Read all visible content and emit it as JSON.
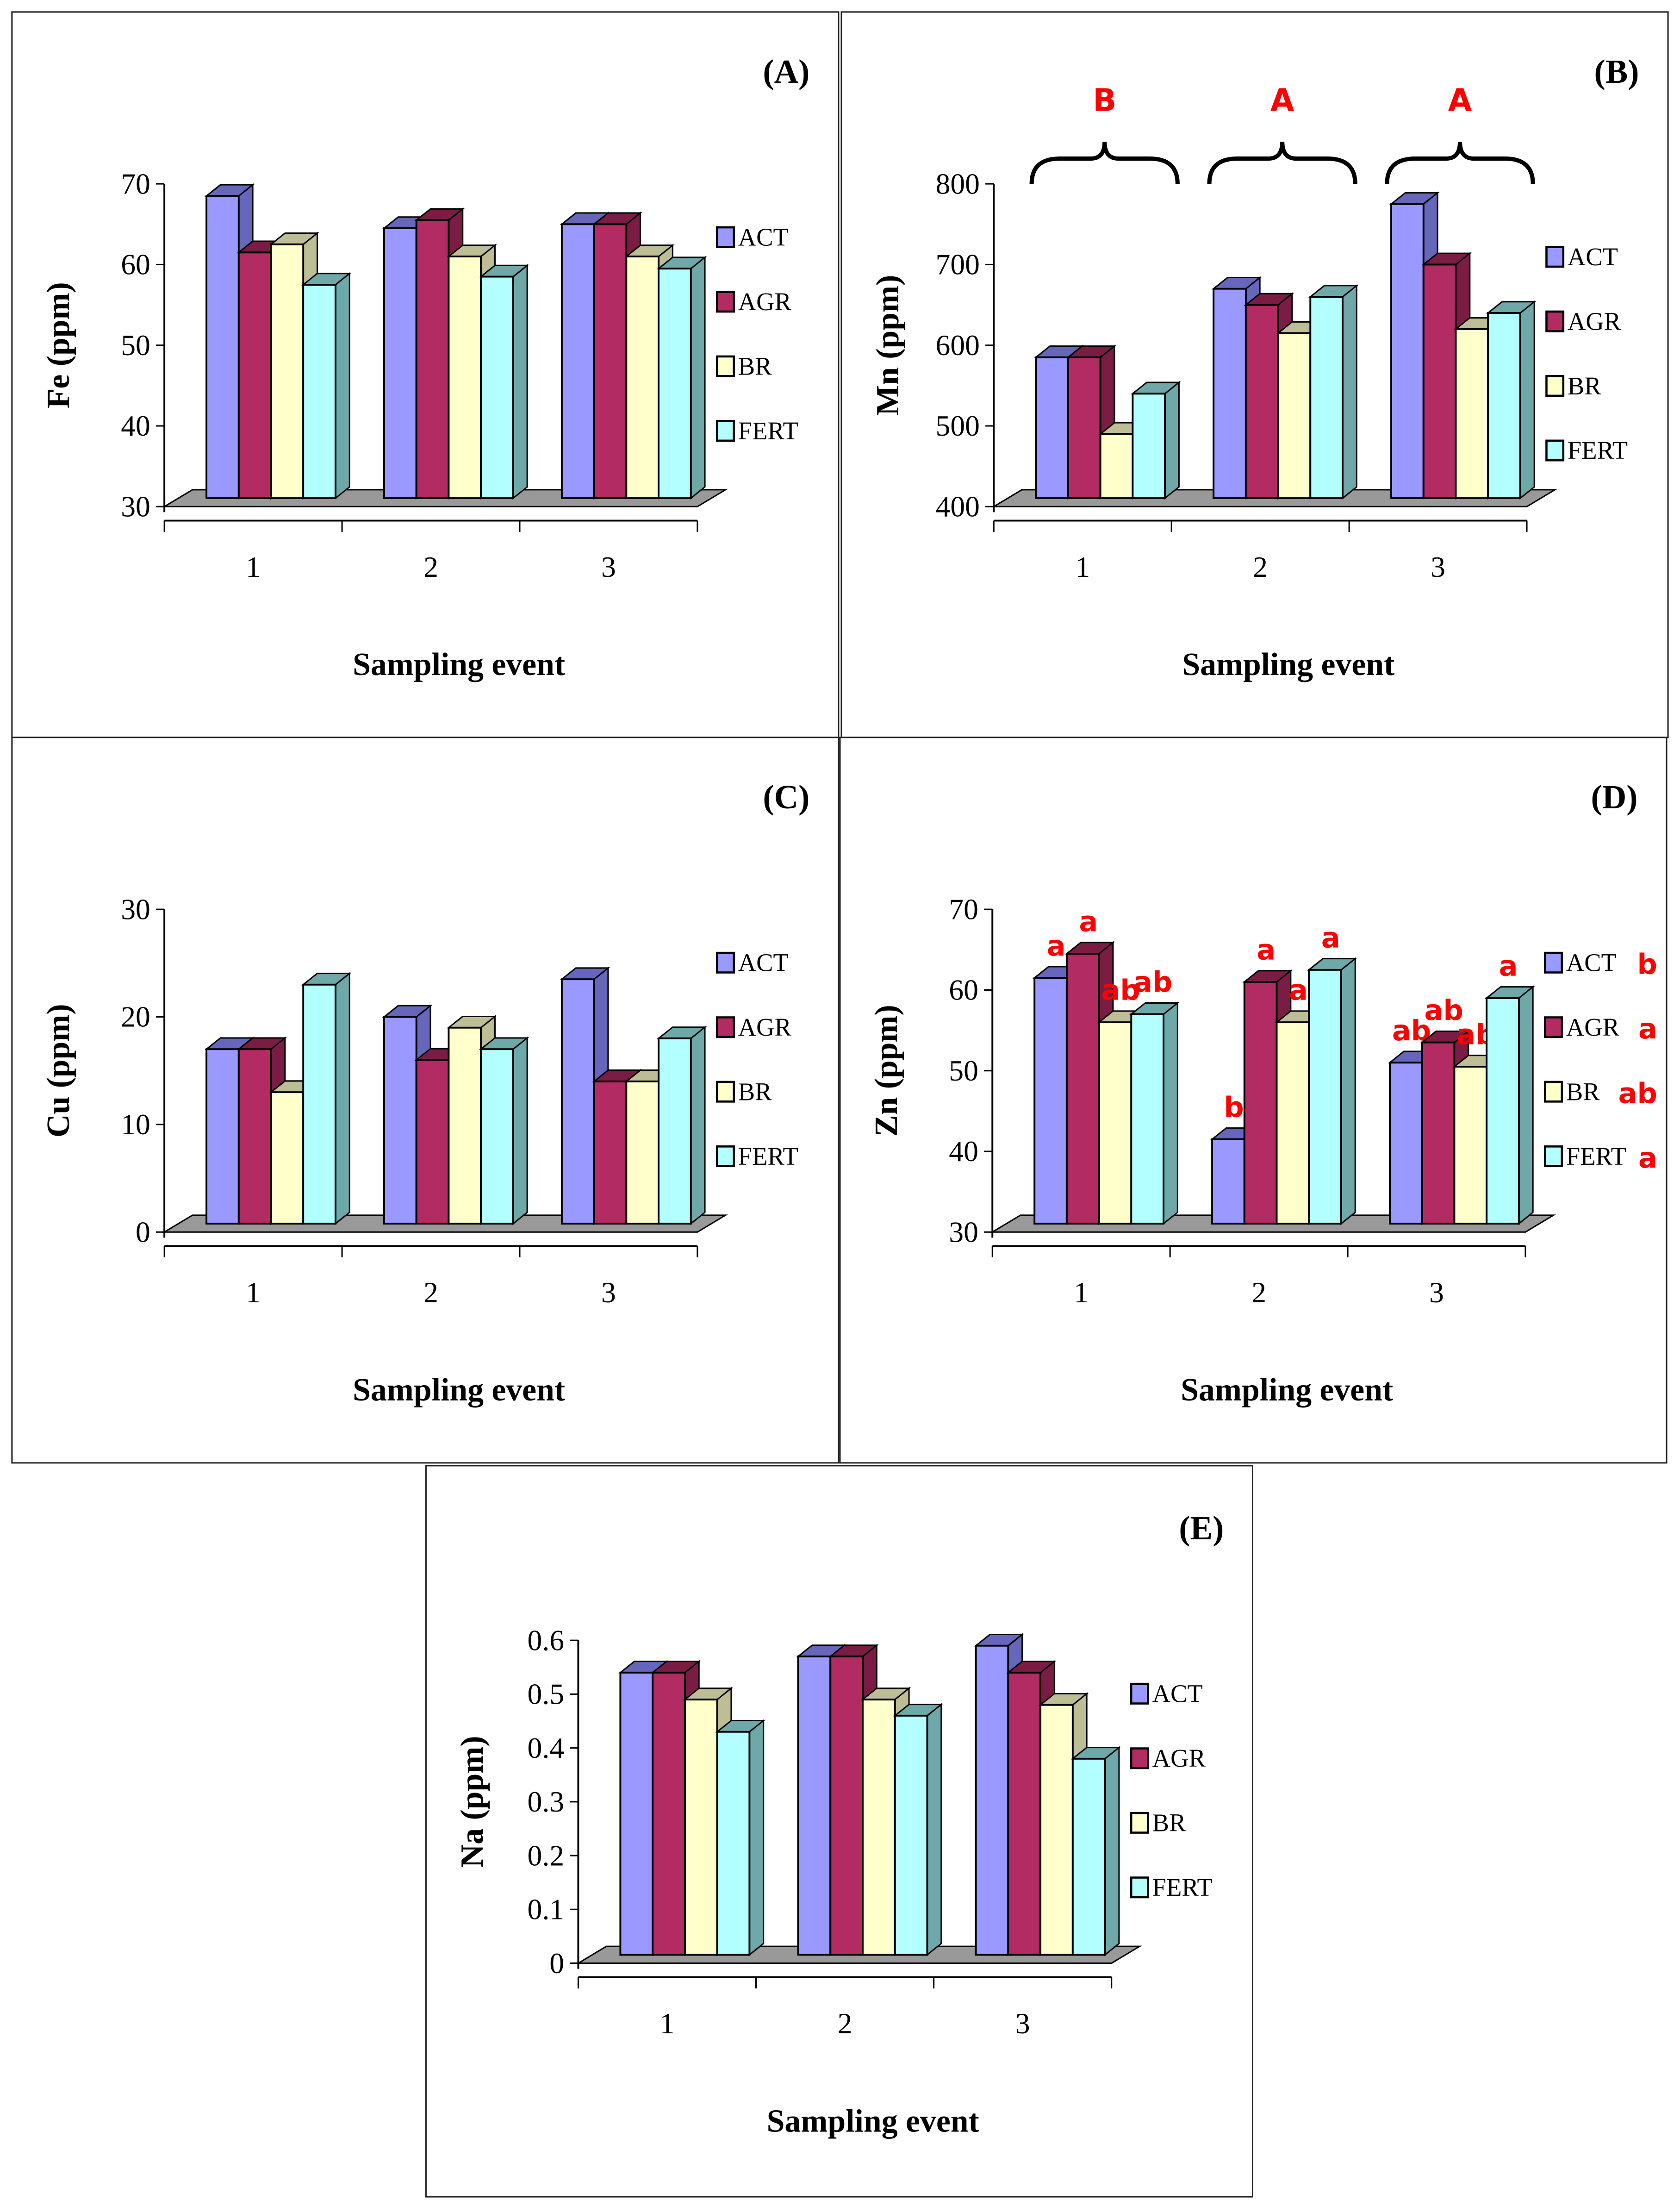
{
  "chart_data": [
    {
      "panel": "(A)",
      "type": "bar",
      "ylabel": "Fe (ppm)",
      "xlabel": "Sampling event",
      "categories": [
        "1",
        "2",
        "3"
      ],
      "ylim": [
        30,
        70
      ],
      "yticks": [
        "30",
        "40",
        "50",
        "60",
        "70"
      ],
      "series": [
        {
          "name": "ACT",
          "values": [
            68.5,
            64.5,
            65
          ]
        },
        {
          "name": "AGR",
          "values": [
            61.5,
            65.5,
            65
          ]
        },
        {
          "name": "BR",
          "values": [
            62.5,
            61,
            61
          ]
        },
        {
          "name": "FERT",
          "values": [
            57.5,
            58.5,
            59.5
          ]
        }
      ]
    },
    {
      "panel": "(B)",
      "type": "bar",
      "ylabel": "Mn (ppm)",
      "xlabel": "Sampling event",
      "categories": [
        "1",
        "2",
        "3"
      ],
      "ylim": [
        400,
        800
      ],
      "yticks": [
        "400",
        "500",
        "600",
        "700",
        "800"
      ],
      "group_letters": [
        "B",
        "A",
        "A"
      ],
      "series": [
        {
          "name": "ACT",
          "values": [
            585,
            670,
            775
          ]
        },
        {
          "name": "AGR",
          "values": [
            585,
            650,
            700
          ]
        },
        {
          "name": "BR",
          "values": [
            490,
            615,
            620
          ]
        },
        {
          "name": "FERT",
          "values": [
            540,
            660,
            640
          ]
        }
      ]
    },
    {
      "panel": "(C)",
      "type": "bar",
      "ylabel": "Cu (ppm)",
      "xlabel": "Sampling event",
      "categories": [
        "1",
        "2",
        "3"
      ],
      "ylim": [
        0,
        30
      ],
      "yticks": [
        "0",
        "10",
        "20",
        "30"
      ],
      "series": [
        {
          "name": "ACT",
          "values": [
            17,
            20,
            23.5
          ]
        },
        {
          "name": "AGR",
          "values": [
            17,
            16,
            14
          ]
        },
        {
          "name": "BR",
          "values": [
            13,
            19,
            14
          ]
        },
        {
          "name": "FERT",
          "values": [
            23,
            17,
            18
          ]
        }
      ]
    },
    {
      "panel": "(D)",
      "type": "bar",
      "ylabel": "Zn (ppm)",
      "xlabel": "Sampling event",
      "categories": [
        "1",
        "2",
        "3"
      ],
      "ylim": [
        30,
        70
      ],
      "yticks": [
        "30",
        "40",
        "50",
        "60",
        "70"
      ],
      "legend_letters": [
        "b",
        "a",
        "ab",
        "a"
      ],
      "series": [
        {
          "name": "ACT",
          "values": [
            61.5,
            41.5,
            51
          ],
          "letters": [
            "a",
            "b",
            "ab"
          ]
        },
        {
          "name": "AGR",
          "values": [
            64.5,
            61,
            53.5
          ],
          "letters": [
            "a",
            "a",
            "ab"
          ]
        },
        {
          "name": "BR",
          "values": [
            56,
            56,
            50.5
          ],
          "letters": [
            "ab",
            "a",
            "ab"
          ]
        },
        {
          "name": "FERT",
          "values": [
            57,
            62.5,
            59
          ],
          "letters": [
            "ab",
            "a",
            "a"
          ]
        }
      ]
    },
    {
      "panel": "(E)",
      "type": "bar",
      "ylabel": "Na (ppm)",
      "xlabel": "Sampling event",
      "categories": [
        "1",
        "2",
        "3"
      ],
      "ylim": [
        0,
        0.6
      ],
      "yticks": [
        "0",
        "0.1",
        "0.2",
        "0.3",
        "0.4",
        "0.5",
        "0.6"
      ],
      "series": [
        {
          "name": "ACT",
          "values": [
            0.54,
            0.57,
            0.59
          ]
        },
        {
          "name": "AGR",
          "values": [
            0.54,
            0.57,
            0.54
          ]
        },
        {
          "name": "BR",
          "values": [
            0.49,
            0.49,
            0.48
          ]
        },
        {
          "name": "FERT",
          "values": [
            0.43,
            0.46,
            0.38
          ]
        }
      ]
    }
  ],
  "colors": {
    "ACT": [
      "#9999ff",
      "#6666bb"
    ],
    "AGR": [
      "#b22b63",
      "#7a1c44"
    ],
    "BR": [
      "#ffffcc",
      "#bdbd96"
    ],
    "FERT": [
      "#b3ffff",
      "#6fa8a8"
    ],
    "floor": "#999999",
    "annotation": "#ff0000"
  }
}
